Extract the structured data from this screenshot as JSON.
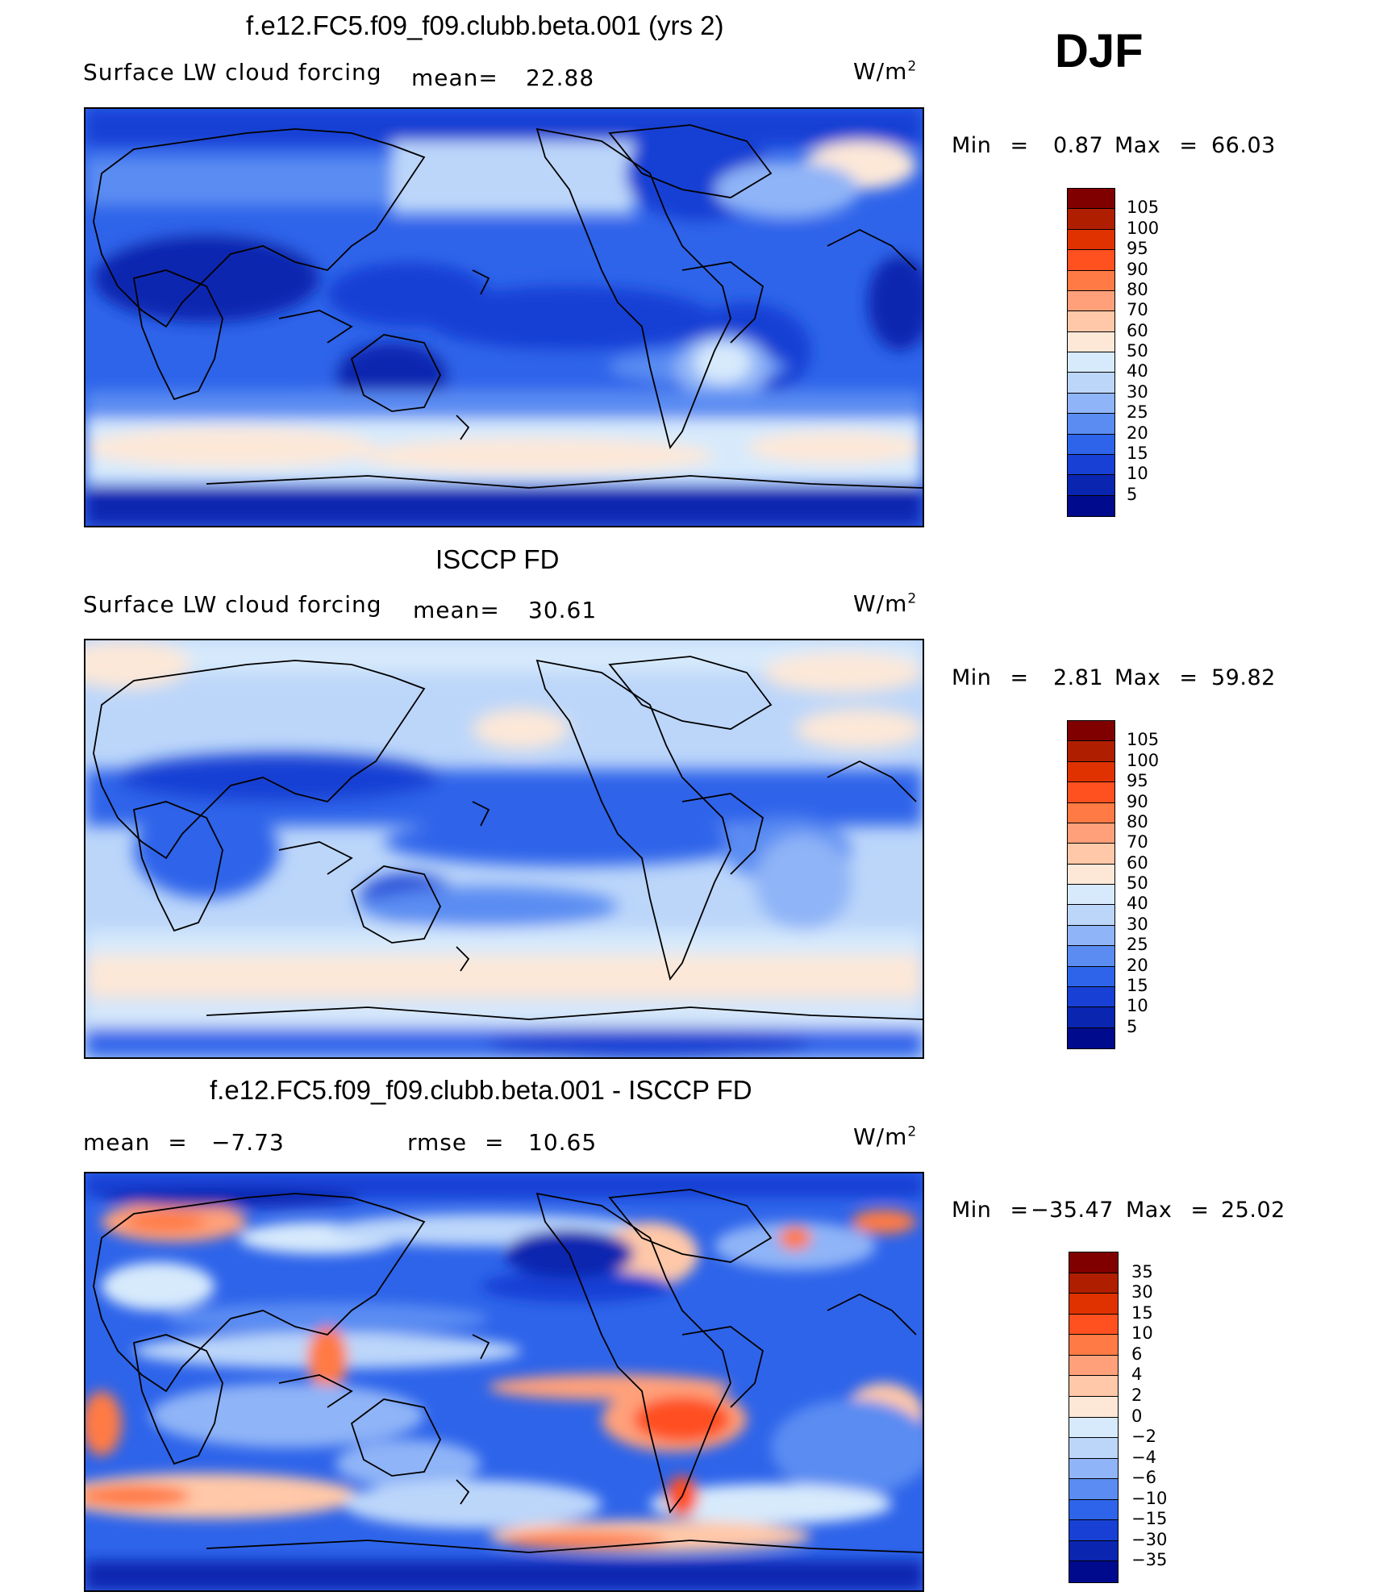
{
  "season": "DJF",
  "units": "W/m",
  "units_sup": "2",
  "panels": [
    {
      "title": "f.e12.FC5.f09_f09.clubb.beta.001 (yrs 2)",
      "left_text": "Surface LW cloud forcing",
      "mean_label": "mean=",
      "mean_value": "22.88",
      "min_label": "Min =",
      "min_value": "0.87",
      "max_label": "Max =",
      "max_value": "66.03"
    },
    {
      "title": "ISCCP FD",
      "left_text": "Surface LW cloud forcing",
      "mean_label": "mean=",
      "mean_value": "30.61",
      "min_label": "Min =",
      "min_value": "2.81",
      "max_label": "Max =",
      "max_value": "59.82"
    },
    {
      "title": "f.e12.FC5.f09_f09.clubb.beta.001 - ISCCP FD",
      "mean_label": "mean =",
      "mean_value": "−7.73",
      "rmse_label": "rmse =",
      "rmse_value": "10.65",
      "min_label": "Min =",
      "min_value": "−35.47",
      "max_label": "Max =",
      "max_value": "25.02"
    }
  ],
  "chart_data": [
    {
      "type": "heatmap",
      "title": "f.e12.FC5.f09_f09.clubb.beta.001 (yrs 2)",
      "variable": "Surface LW cloud forcing",
      "units": "W/m2",
      "mean": 22.88,
      "min": 0.87,
      "max": 66.03,
      "levels": [
        "105",
        "100",
        "95",
        "90",
        "80",
        "70",
        "60",
        "50",
        "40",
        "30",
        "25",
        "20",
        "15",
        "10",
        "5"
      ],
      "colors": [
        "#800000",
        "#b01e00",
        "#e03200",
        "#ff5020",
        "#ff7a44",
        "#ffa07a",
        "#ffc8a8",
        "#fde8d8",
        "#d7eafc",
        "#bcd6fa",
        "#8fb4f7",
        "#5a8cf2",
        "#2e64ea",
        "#1840d4",
        "#0a25b0",
        "#000a8c"
      ]
    },
    {
      "type": "heatmap",
      "title": "ISCCP FD",
      "variable": "Surface LW cloud forcing",
      "units": "W/m2",
      "mean": 30.61,
      "min": 2.81,
      "max": 59.82,
      "levels": [
        "105",
        "100",
        "95",
        "90",
        "80",
        "70",
        "60",
        "50",
        "40",
        "30",
        "25",
        "20",
        "15",
        "10",
        "5"
      ],
      "colors": [
        "#800000",
        "#b01e00",
        "#e03200",
        "#ff5020",
        "#ff7a44",
        "#ffa07a",
        "#ffc8a8",
        "#fde8d8",
        "#d7eafc",
        "#bcd6fa",
        "#8fb4f7",
        "#5a8cf2",
        "#2e64ea",
        "#1840d4",
        "#0a25b0",
        "#000a8c"
      ]
    },
    {
      "type": "heatmap",
      "title": "f.e12.FC5.f09_f09.clubb.beta.001 - ISCCP FD",
      "units": "W/m2",
      "mean": -7.73,
      "rmse": 10.65,
      "min": -35.47,
      "max": 25.02,
      "levels": [
        "35",
        "30",
        "15",
        "10",
        "6",
        "4",
        "2",
        "0",
        "−2",
        "−4",
        "−6",
        "−10",
        "−15",
        "−30",
        "−35"
      ],
      "colors": [
        "#800000",
        "#b01e00",
        "#e03200",
        "#ff5020",
        "#ff7a44",
        "#ffa07a",
        "#ffc8a8",
        "#fde8d8",
        "#d7eafc",
        "#bcd6fa",
        "#8fb4f7",
        "#5a8cf2",
        "#2e64ea",
        "#1840d4",
        "#0a25b0",
        "#000a8c"
      ]
    }
  ]
}
